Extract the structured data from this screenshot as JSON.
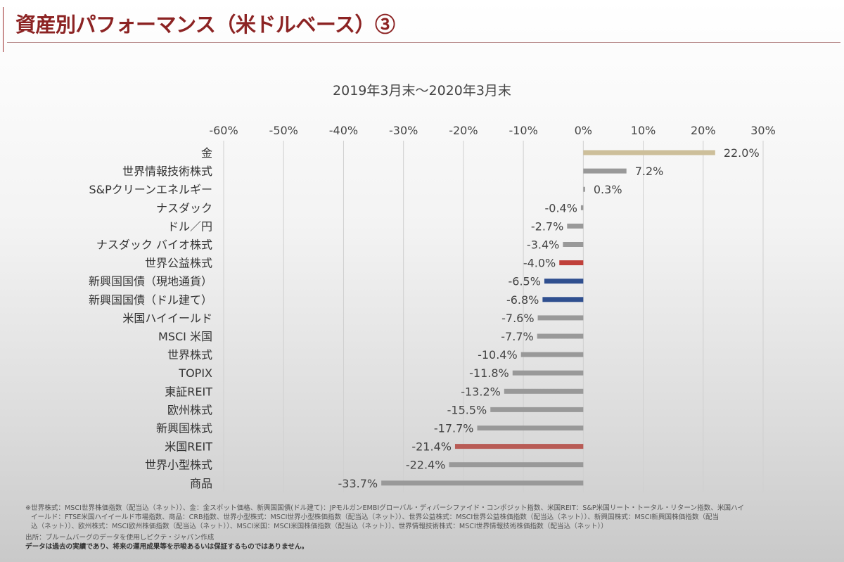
{
  "header": {
    "title": "資産別パフォーマンス（米ドルベース）③"
  },
  "footer": {
    "note_line1": "※世界株式：MSCI世界株価指数（配当込（ネット））、金：金スポット価格、新興国国債(ドル建て)：JPモルガンEMBIグローバル・ディバーシファイド・コンポジット指数、米国REIT：S&P米国リート・トータル・リターン指数、米国ハイ",
    "note_line2": "イールド：FTSE米国ハイイールド市場指数、商品：CRB指数、世界小型株式：MSCI世界小型株価指数（配当込（ネット））、世界公益株式：MSCI世界公益株価指数（配当込（ネット））、新興国株式：MSCI新興国株価指数（配当",
    "note_line3": "込（ネット））、欧州株式：MSCI欧州株価指数（配当込（ネット））、MSCI米国：MSCI米国株価指数（配当込（ネット））、世界情報技術株式：MSCI世界情報技術株価指数（配当込（ネット））",
    "source": "出所：ブルームバーグのデータを使用しピクテ・ジャパン作成",
    "disclaimer": "データは過去の実績であり、将来の運用成果等を示唆あるいは保証するものではありません。"
  },
  "chart_data": {
    "type": "bar",
    "orientation": "horizontal",
    "title": "2019年3月末～2020年3月末",
    "xlim": [
      -60,
      30
    ],
    "xticks": [
      -60,
      -50,
      -40,
      -30,
      -20,
      -10,
      0,
      10,
      20,
      30
    ],
    "xtick_labels": [
      "-60%",
      "-50%",
      "-40%",
      "-30%",
      "-20%",
      "-10%",
      "0%",
      "10%",
      "20%",
      "30%"
    ],
    "axis_position": "top",
    "grid": true,
    "categories": [
      "金",
      "世界情報技術株式",
      "S&Pクリーンエネルギー",
      "ナスダック",
      "ドル／円",
      "ナスダック バイオ株式",
      "世界公益株式",
      "新興国国債（現地通貨）",
      "新興国国債（ドル建て）",
      "米国ハイイールド",
      "MSCI 米国",
      "世界株式",
      "TOPIX",
      "東証REIT",
      "欧州株式",
      "新興国株式",
      "米国REIT",
      "世界小型株式",
      "商品"
    ],
    "values": [
      22.0,
      7.2,
      0.3,
      -0.4,
      -2.7,
      -3.4,
      -4.0,
      -6.5,
      -6.8,
      -7.6,
      -7.7,
      -10.4,
      -11.8,
      -13.2,
      -15.5,
      -17.7,
      -21.4,
      -22.4,
      -33.7
    ],
    "value_labels": [
      "22.0%",
      "7.2%",
      "0.3%",
      "-0.4%",
      "-2.7%",
      "-3.4%",
      "-4.0%",
      "-6.5%",
      "-6.8%",
      "-7.6%",
      "-7.7%",
      "-10.4%",
      "-11.8%",
      "-13.2%",
      "-15.5%",
      "-17.7%",
      "-21.4%",
      "-22.4%",
      "-33.7%"
    ],
    "colors": [
      "#cdbf9a",
      "#999999",
      "#999999",
      "#999999",
      "#999999",
      "#999999",
      "#c0403a",
      "#2f4f8f",
      "#2f4f8f",
      "#999999",
      "#999999",
      "#999999",
      "#999999",
      "#999999",
      "#999999",
      "#999999",
      "#b85b55",
      "#999999",
      "#999999"
    ]
  }
}
